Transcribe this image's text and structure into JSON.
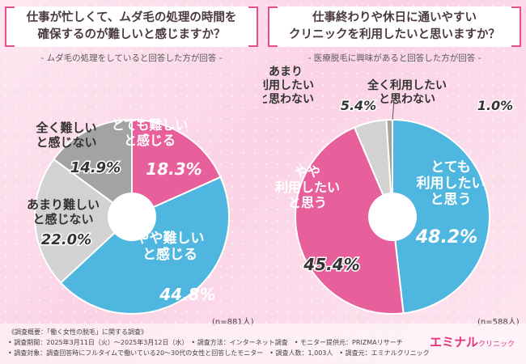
{
  "charts": [
    {
      "question": "仕事が忙しくて、ムダ毛の処理の時間を\n確保するのが難しいと感じますか？",
      "subtitle": "- ムダ毛の処理をしていると回答した方が回答 -",
      "n_label": "(n=881人)"
    },
    {
      "question": "仕事終わりや休日に通いやすい\nクリニックを利用したいと思いますか？",
      "subtitle": "- 医療脱毛に興味があると回答した方が回答 -",
      "n_label": "(n=588人)"
    }
  ],
  "chart_data": [
    {
      "type": "pie",
      "start": "12 o'clock, clockwise",
      "slices": [
        {
          "label": "とても難しいと感じる",
          "value": 18.3,
          "display": "18.3%",
          "color": "#e8609b"
        },
        {
          "label": "やや難しいと感じる",
          "value": 44.8,
          "display": "44.8%",
          "color": "#4fb7df"
        },
        {
          "label": "あまり難しいと感じない",
          "value": 22.0,
          "display": "22.0%",
          "color": "#d2d2d2"
        },
        {
          "label": "全く難しいと感じない",
          "value": 14.9,
          "display": "14.9%",
          "color": "#a3a3a3"
        }
      ]
    },
    {
      "type": "pie",
      "start": "12 o'clock, clockwise",
      "slices": [
        {
          "label": "とても利用したいと思う",
          "value": 48.2,
          "display": "48.2%",
          "color": "#4fb7df"
        },
        {
          "label": "やや利用したいと思う",
          "value": 45.4,
          "display": "45.4%",
          "color": "#e8609b"
        },
        {
          "label": "あまり利用したいと思わない",
          "value": 5.4,
          "display": "5.4%",
          "color": "#d2d2d2"
        },
        {
          "label": "全く利用したいと思わない",
          "value": 1.0,
          "display": "1.0%",
          "color": "#a3a3a3"
        }
      ]
    }
  ],
  "footer": {
    "line1": "《調査概要：「働く女性の脱毛」に関する調査》",
    "line2": "• 調査期間：2025年3月11日（火）～2025年3月12日（水）　• 調査方法：インターネット調査　• モニター提供元：PRIZMAリサーチ",
    "line3": "• 調査対象：調査回答時にフルタイムで働いている20～30代の女性と回答したモニター　• 調査人数：1,003人　• 調査元：エミナルクリニック",
    "logo_main": "エミナル",
    "logo_sub": "クリニック"
  }
}
